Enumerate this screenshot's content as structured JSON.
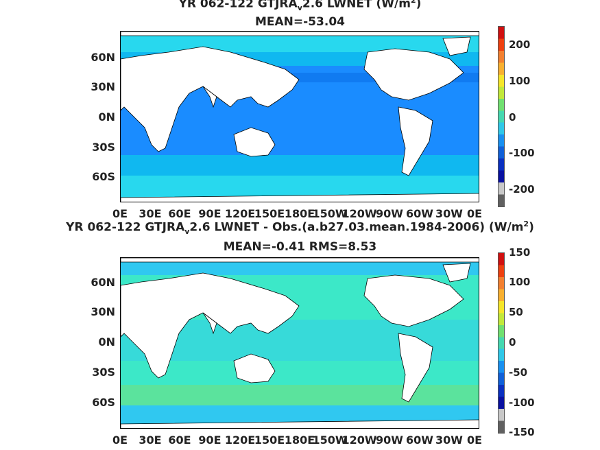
{
  "panel_top": {
    "title": "YR 062-122 GTJRA",
    "title_sub": "v",
    "title_rest": "2.6  LWNET (W/m",
    "title_sup": "2",
    "title_end": ")",
    "mean_line": "MEAN=-53.04",
    "colorbar_ticks": [
      "200",
      "100",
      "0",
      "-100",
      "-200"
    ],
    "colorbar_colors": [
      "#d01010",
      "#ee4010",
      "#f38030",
      "#f9b030",
      "#f6e62a",
      "#c2e83a",
      "#70e070",
      "#45d8b0",
      "#30c8e8",
      "#1890f0",
      "#1060d8",
      "#0a30c0",
      "#0810a0",
      "#c8c8c8",
      "#606060"
    ],
    "ocean_color": "#1a8cff",
    "polar_color": "#28d8ee"
  },
  "panel_bottom": {
    "title": "YR 062-122 GTJRA",
    "title_sub": "v",
    "title_rest": "2.6 LWNET - Obs.(a.b27.03.mean.1984-2006) (W/m",
    "title_sup": "2",
    "title_end": ")",
    "mean_line": "MEAN=-0.41 RMS=8.53",
    "colorbar_ticks": [
      "150",
      "100",
      "50",
      "0",
      "-50",
      "-100",
      "-150"
    ],
    "colorbar_colors": [
      "#d01010",
      "#ee4010",
      "#f38030",
      "#f9b030",
      "#f6e62a",
      "#c2e83a",
      "#70e070",
      "#45d8b0",
      "#30c8e8",
      "#1890f0",
      "#1060d8",
      "#0a30c0",
      "#0810a0",
      "#c8c8c8",
      "#606060"
    ],
    "ocean_color": "#3ce8c8",
    "polar_color": "#30c8f0"
  },
  "axes": {
    "lat_labels": [
      "60N",
      "30N",
      "0N",
      "30S",
      "60S"
    ],
    "lon_labels": [
      "0E",
      "30E",
      "60E",
      "90E",
      "120E",
      "150E",
      "180E",
      "150W",
      "120W",
      "90W",
      "60W",
      "30W",
      "0E"
    ]
  }
}
